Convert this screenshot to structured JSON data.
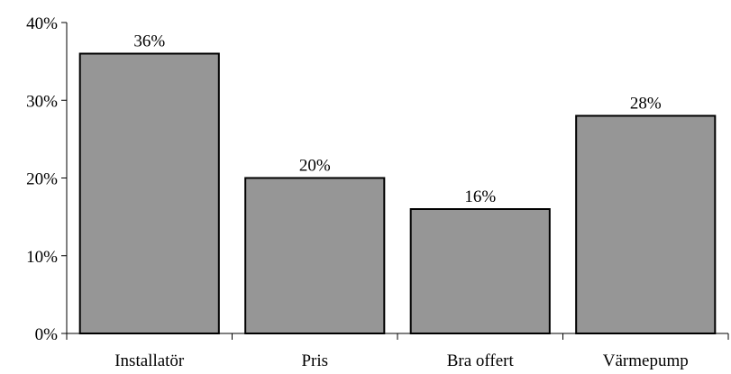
{
  "chart_data": {
    "type": "bar",
    "categories": [
      "Installatör",
      "Pris",
      "Bra offert",
      "Värmepump"
    ],
    "values": [
      36,
      20,
      16,
      28
    ],
    "data_labels": [
      "36%",
      "20%",
      "16%",
      "28%"
    ],
    "ylim": [
      0,
      40
    ],
    "yticks": [
      0,
      10,
      20,
      30,
      40
    ],
    "ytick_labels": [
      "0%",
      "10%",
      "20%",
      "30%",
      "40%"
    ],
    "title": "",
    "xlabel": "",
    "ylabel": "",
    "grid": false,
    "legend": "none",
    "bar_color": "#969696",
    "bar_edge_color": "#000000"
  }
}
